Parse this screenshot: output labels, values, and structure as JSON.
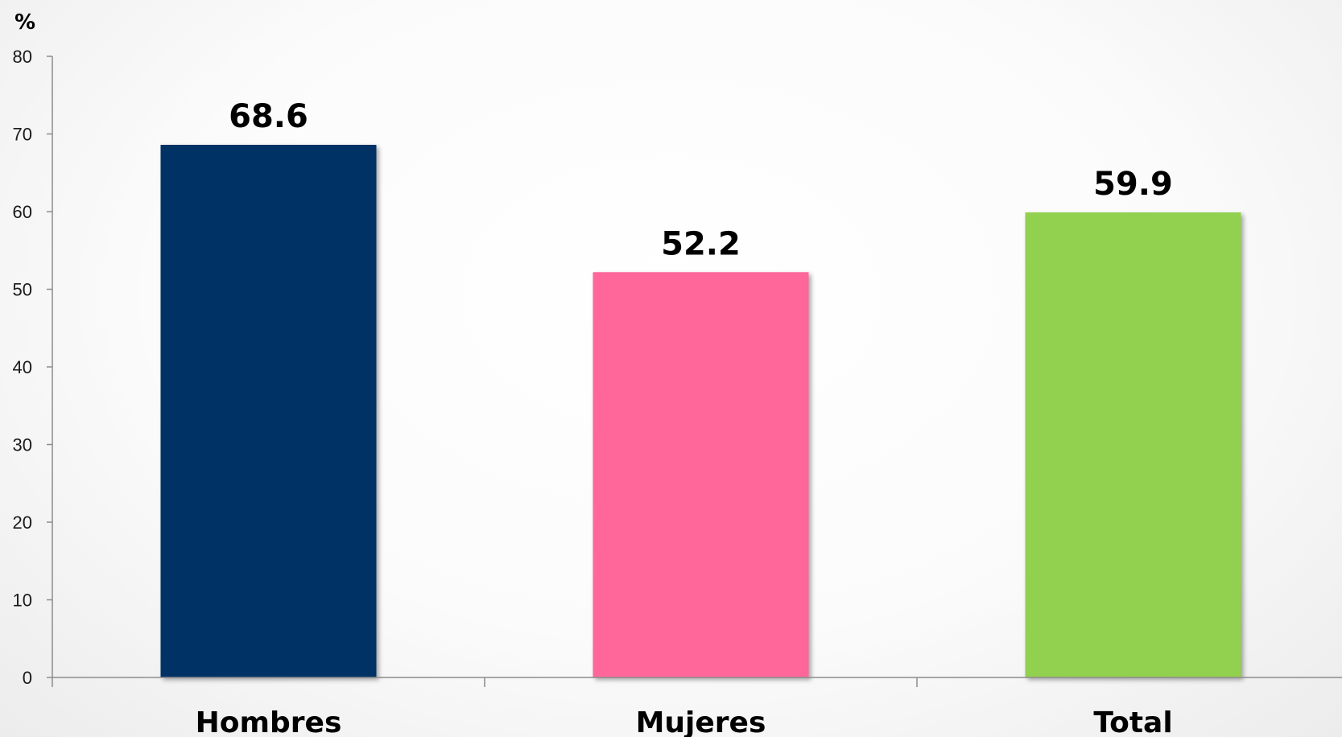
{
  "chart_data": {
    "type": "bar",
    "categories": [
      "Hombres",
      "Mujeres",
      "Total"
    ],
    "values": [
      68.6,
      52.2,
      59.9
    ],
    "value_labels": [
      "68.6",
      "52.2",
      "59.9"
    ],
    "title": "",
    "xlabel": "",
    "ylabel": "%",
    "ylim": [
      0,
      80
    ],
    "yticks": [
      0,
      10,
      20,
      30,
      40,
      50,
      60,
      70,
      80
    ],
    "grid": false,
    "legend": "none",
    "colors": [
      "#003366",
      "#ff6699",
      "#92d050"
    ]
  }
}
